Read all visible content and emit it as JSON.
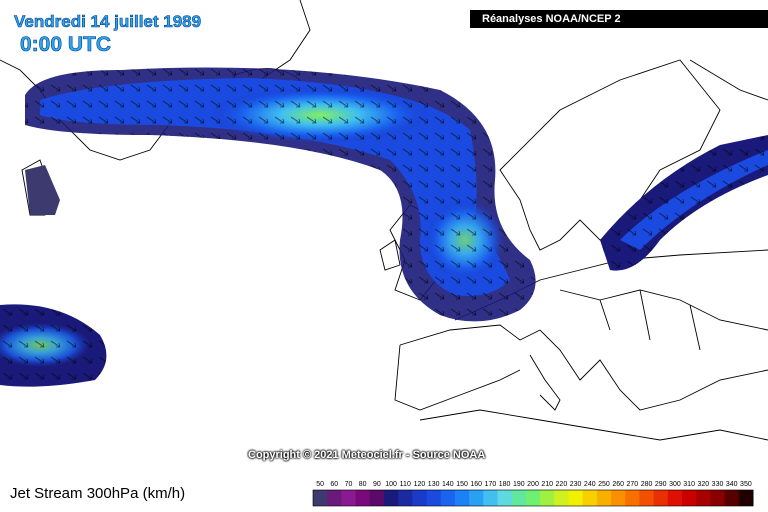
{
  "header": {
    "date": "Vendredi 14 juillet 1989",
    "time": "0:00 UTC",
    "source_banner": "Réanalyses NOAA/NCEP 2"
  },
  "copyright": "Copyright © 2021 Meteociel.fr - Source NOAA",
  "legend": {
    "title": "Jet Stream 300hPa (km/h)",
    "labels": [
      "50",
      "60",
      "70",
      "80",
      "90",
      "100",
      "110",
      "120",
      "130",
      "140",
      "150",
      "160",
      "170",
      "180",
      "190",
      "200",
      "210",
      "220",
      "230",
      "240",
      "250",
      "260",
      "270",
      "280",
      "290",
      "300",
      "310",
      "320",
      "330",
      "340",
      "350"
    ],
    "colors": [
      "#3c3a6e",
      "#6a1a7a",
      "#8a1a92",
      "#7a0a7a",
      "#5a0a6a",
      "#1a1a7a",
      "#1a2aa0",
      "#1a3ac8",
      "#1a4ae0",
      "#1a64f0",
      "#1a82f4",
      "#28a0f4",
      "#40c0f0",
      "#60d8e0",
      "#60e8a0",
      "#70f070",
      "#a0f040",
      "#d0f020",
      "#f0f000",
      "#f8d000",
      "#f8b000",
      "#f89000",
      "#f87000",
      "#f05000",
      "#e83000",
      "#e01000",
      "#c80000",
      "#a80000",
      "#880000",
      "#580000",
      "#200000"
    ]
  }
}
